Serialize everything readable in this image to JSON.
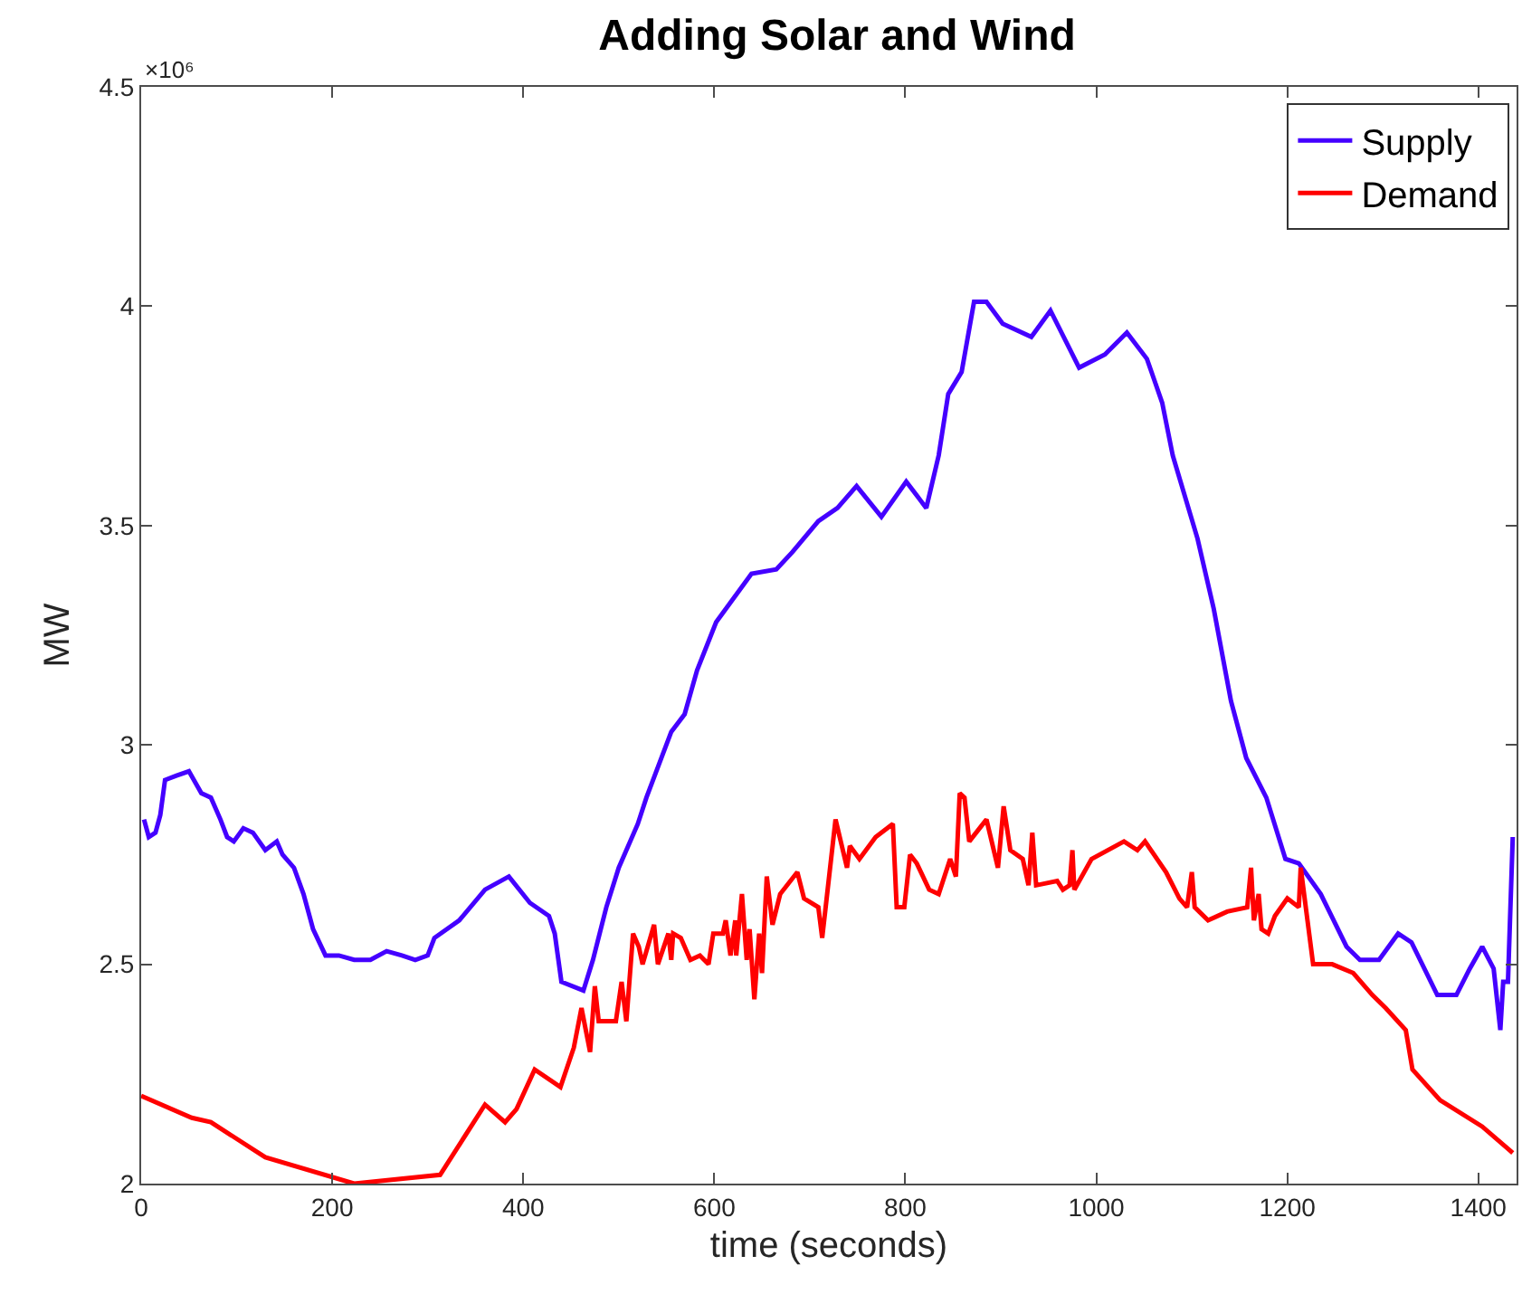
{
  "chart_data": {
    "type": "line",
    "title": "Adding Solar and Wind",
    "xlabel": "time (seconds)",
    "ylabel": "MW",
    "annotations": [
      "×10⁶"
    ],
    "xlim": [
      0,
      1440
    ],
    "xticks": [
      0,
      200,
      400,
      600,
      800,
      1000,
      1200,
      1400
    ],
    "ylim": [
      2,
      4.5
    ],
    "yticks": [
      2,
      2.5,
      3,
      3.5,
      4,
      4.5
    ],
    "grid": false,
    "legend": "top right",
    "marker": "none",
    "line_style": "solid",
    "series": [
      {
        "name": "Supply",
        "color": "#4400ff",
        "x": [
          3,
          8,
          15,
          20,
          25,
          37,
          50,
          63,
          73,
          83,
          90,
          97,
          107,
          117,
          130,
          142,
          148,
          160,
          170,
          180,
          193,
          207,
          223,
          240,
          257,
          273,
          287,
          300,
          307,
          333,
          360,
          385,
          407,
          427,
          433,
          440,
          463,
          473,
          487,
          500,
          520,
          529,
          555,
          569,
          582,
          602,
          639,
          665,
          682,
          709,
          729,
          749,
          775,
          801,
          822,
          835,
          845,
          859,
          872,
          885,
          902,
          932,
          952,
          982,
          1009,
          1032,
          1053,
          1069,
          1080,
          1106,
          1123,
          1141,
          1157,
          1178,
          1198,
          1212,
          1235,
          1262,
          1276,
          1296,
          1316,
          1330,
          1357,
          1377,
          1391,
          1404,
          1416,
          1423,
          1426,
          1431,
          1436
        ],
        "values": [
          2.83,
          2.79,
          2.8,
          2.84,
          2.92,
          2.93,
          2.94,
          2.89,
          2.88,
          2.83,
          2.79,
          2.78,
          2.81,
          2.8,
          2.76,
          2.78,
          2.75,
          2.72,
          2.66,
          2.58,
          2.52,
          2.52,
          2.51,
          2.51,
          2.53,
          2.52,
          2.51,
          2.52,
          2.56,
          2.6,
          2.67,
          2.7,
          2.64,
          2.61,
          2.57,
          2.46,
          2.44,
          2.51,
          2.63,
          2.72,
          2.82,
          2.88,
          3.03,
          3.07,
          3.17,
          3.28,
          3.39,
          3.4,
          3.44,
          3.51,
          3.54,
          3.59,
          3.52,
          3.6,
          3.54,
          3.66,
          3.8,
          3.85,
          4.01,
          4.01,
          3.96,
          3.93,
          3.99,
          3.86,
          3.89,
          3.94,
          3.88,
          3.78,
          3.66,
          3.47,
          3.31,
          3.1,
          2.97,
          2.88,
          2.74,
          2.73,
          2.66,
          2.54,
          2.51,
          2.51,
          2.57,
          2.55,
          2.43,
          2.43,
          2.49,
          2.54,
          2.49,
          2.35,
          2.46,
          2.46,
          2.79
        ]
      },
      {
        "name": "Demand",
        "color": "#ff0000",
        "x": [
          0,
          53,
          73,
          130,
          223,
          313,
          360,
          381,
          393,
          412,
          439,
          453,
          461,
          470,
          475,
          479,
          497,
          503,
          508,
          515,
          521,
          525,
          537,
          541,
          552,
          555,
          557,
          565,
          575,
          585,
          594,
          599,
          609,
          612,
          617,
          622,
          623,
          629,
          634,
          637,
          642,
          647,
          650,
          655,
          661,
          669,
          687,
          694,
          709,
          713,
          727,
          739,
          742,
          752,
          769,
          787,
          791,
          799,
          805,
          812,
          825,
          835,
          847,
          853,
          857,
          862,
          867,
          885,
          897,
          903,
          910,
          923,
          929,
          933,
          937,
          959,
          965,
          972,
          975,
          977,
          995,
          1029,
          1043,
          1051,
          1073,
          1087,
          1095,
          1100,
          1103,
          1117,
          1137,
          1158,
          1162,
          1165,
          1170,
          1173,
          1180,
          1187,
          1200,
          1212,
          1214,
          1227,
          1247,
          1269,
          1289,
          1303,
          1324,
          1331,
          1360,
          1404,
          1436
        ],
        "values": [
          2.2,
          2.15,
          2.14,
          2.06,
          2.0,
          2.02,
          2.18,
          2.14,
          2.17,
          2.26,
          2.22,
          2.31,
          2.4,
          2.3,
          2.45,
          2.37,
          2.37,
          2.46,
          2.37,
          2.57,
          2.54,
          2.5,
          2.59,
          2.5,
          2.57,
          2.51,
          2.57,
          2.56,
          2.51,
          2.52,
          2.5,
          2.57,
          2.57,
          2.6,
          2.52,
          2.6,
          2.52,
          2.66,
          2.51,
          2.58,
          2.42,
          2.57,
          2.48,
          2.7,
          2.59,
          2.66,
          2.71,
          2.65,
          2.63,
          2.56,
          2.83,
          2.72,
          2.77,
          2.74,
          2.79,
          2.82,
          2.63,
          2.63,
          2.75,
          2.73,
          2.67,
          2.66,
          2.74,
          2.7,
          2.89,
          2.88,
          2.78,
          2.83,
          2.72,
          2.86,
          2.76,
          2.74,
          2.68,
          2.8,
          2.68,
          2.69,
          2.67,
          2.68,
          2.76,
          2.67,
          2.74,
          2.78,
          2.76,
          2.78,
          2.71,
          2.65,
          2.63,
          2.71,
          2.63,
          2.6,
          2.62,
          2.63,
          2.72,
          2.6,
          2.66,
          2.58,
          2.57,
          2.61,
          2.65,
          2.63,
          2.72,
          2.5,
          2.5,
          2.48,
          2.43,
          2.4,
          2.35,
          2.26,
          2.19,
          2.13,
          2.07
        ]
      }
    ]
  }
}
